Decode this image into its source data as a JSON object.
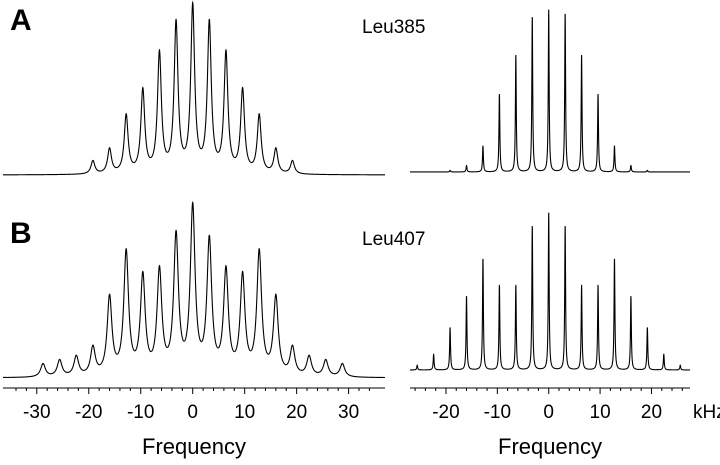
{
  "chart_data": [
    {
      "type": "line",
      "panel_label": "A",
      "annotation": "Leu385",
      "color": "#000000",
      "x": [
        -19.2,
        -16,
        -12.8,
        -9.6,
        -6.4,
        -3.2,
        0,
        3.2,
        6.4,
        9.6,
        12.8,
        16,
        19.2
      ],
      "values": [
        0.08,
        0.15,
        0.35,
        0.5,
        0.72,
        0.9,
        1.0,
        0.9,
        0.72,
        0.5,
        0.35,
        0.15,
        0.08
      ],
      "xlim": [
        -36.5,
        37
      ],
      "ylim": [
        0,
        1
      ]
    },
    {
      "type": "line",
      "color": "#000000",
      "x": [
        -19.2,
        -16,
        -12.8,
        -9.6,
        -6.4,
        -3.2,
        0,
        3.2,
        6.4,
        9.6,
        12.8,
        16,
        19.2
      ],
      "values": [
        0.01,
        0.04,
        0.16,
        0.48,
        0.72,
        0.96,
        1.0,
        0.98,
        0.72,
        0.48,
        0.16,
        0.04,
        0.01
      ],
      "xlim": [
        -27,
        27.5
      ],
      "ylim": [
        0,
        1
      ]
    },
    {
      "type": "line",
      "panel_label": "B",
      "annotation": "Leu407",
      "xlabel": "Frequency",
      "color": "#000000",
      "x": [
        -28.8,
        -25.6,
        -22.4,
        -19.2,
        -16,
        -12.8,
        -9.6,
        -6.4,
        -3.2,
        0,
        3.2,
        6.4,
        9.6,
        12.8,
        16,
        19.2,
        22.4,
        25.6,
        28.8
      ],
      "values": [
        0.08,
        0.1,
        0.12,
        0.17,
        0.47,
        0.74,
        0.59,
        0.62,
        0.83,
        1.0,
        0.8,
        0.62,
        0.59,
        0.74,
        0.47,
        0.17,
        0.12,
        0.1,
        0.08
      ],
      "xlim": [
        -36.5,
        37
      ],
      "ylim": [
        0,
        1
      ],
      "xticks": [
        -30,
        -20,
        -10,
        0,
        10,
        20,
        30
      ],
      "xminorticks": [
        -34,
        -32,
        -28,
        -26,
        -24,
        -22,
        -18,
        -16,
        -14,
        -12,
        -8,
        -6,
        -4,
        -2,
        2,
        4,
        6,
        8,
        12,
        14,
        16,
        18,
        22,
        24,
        26,
        28,
        32,
        34
      ]
    },
    {
      "type": "line",
      "xlabel": "Frequency",
      "xunit": "kHz",
      "color": "#000000",
      "x": [
        -25.6,
        -22.4,
        -19.2,
        -16,
        -12.8,
        -9.6,
        -6.4,
        -3.2,
        0,
        3.2,
        6.4,
        9.6,
        12.8,
        16,
        19.2,
        22.4,
        25.6
      ],
      "values": [
        0.03,
        0.1,
        0.27,
        0.47,
        0.71,
        0.54,
        0.54,
        0.92,
        1.0,
        0.92,
        0.54,
        0.54,
        0.71,
        0.47,
        0.27,
        0.1,
        0.03
      ],
      "xlim": [
        -27,
        27.5
      ],
      "ylim": [
        0,
        1
      ],
      "xticks": [
        -20,
        -10,
        0,
        10,
        20
      ],
      "xminorticks": [
        -26,
        -24,
        -22,
        -18,
        -16,
        -14,
        -12,
        -8,
        -6,
        -4,
        -2,
        2,
        4,
        6,
        8,
        12,
        14,
        16,
        18,
        22,
        24,
        26
      ]
    }
  ]
}
